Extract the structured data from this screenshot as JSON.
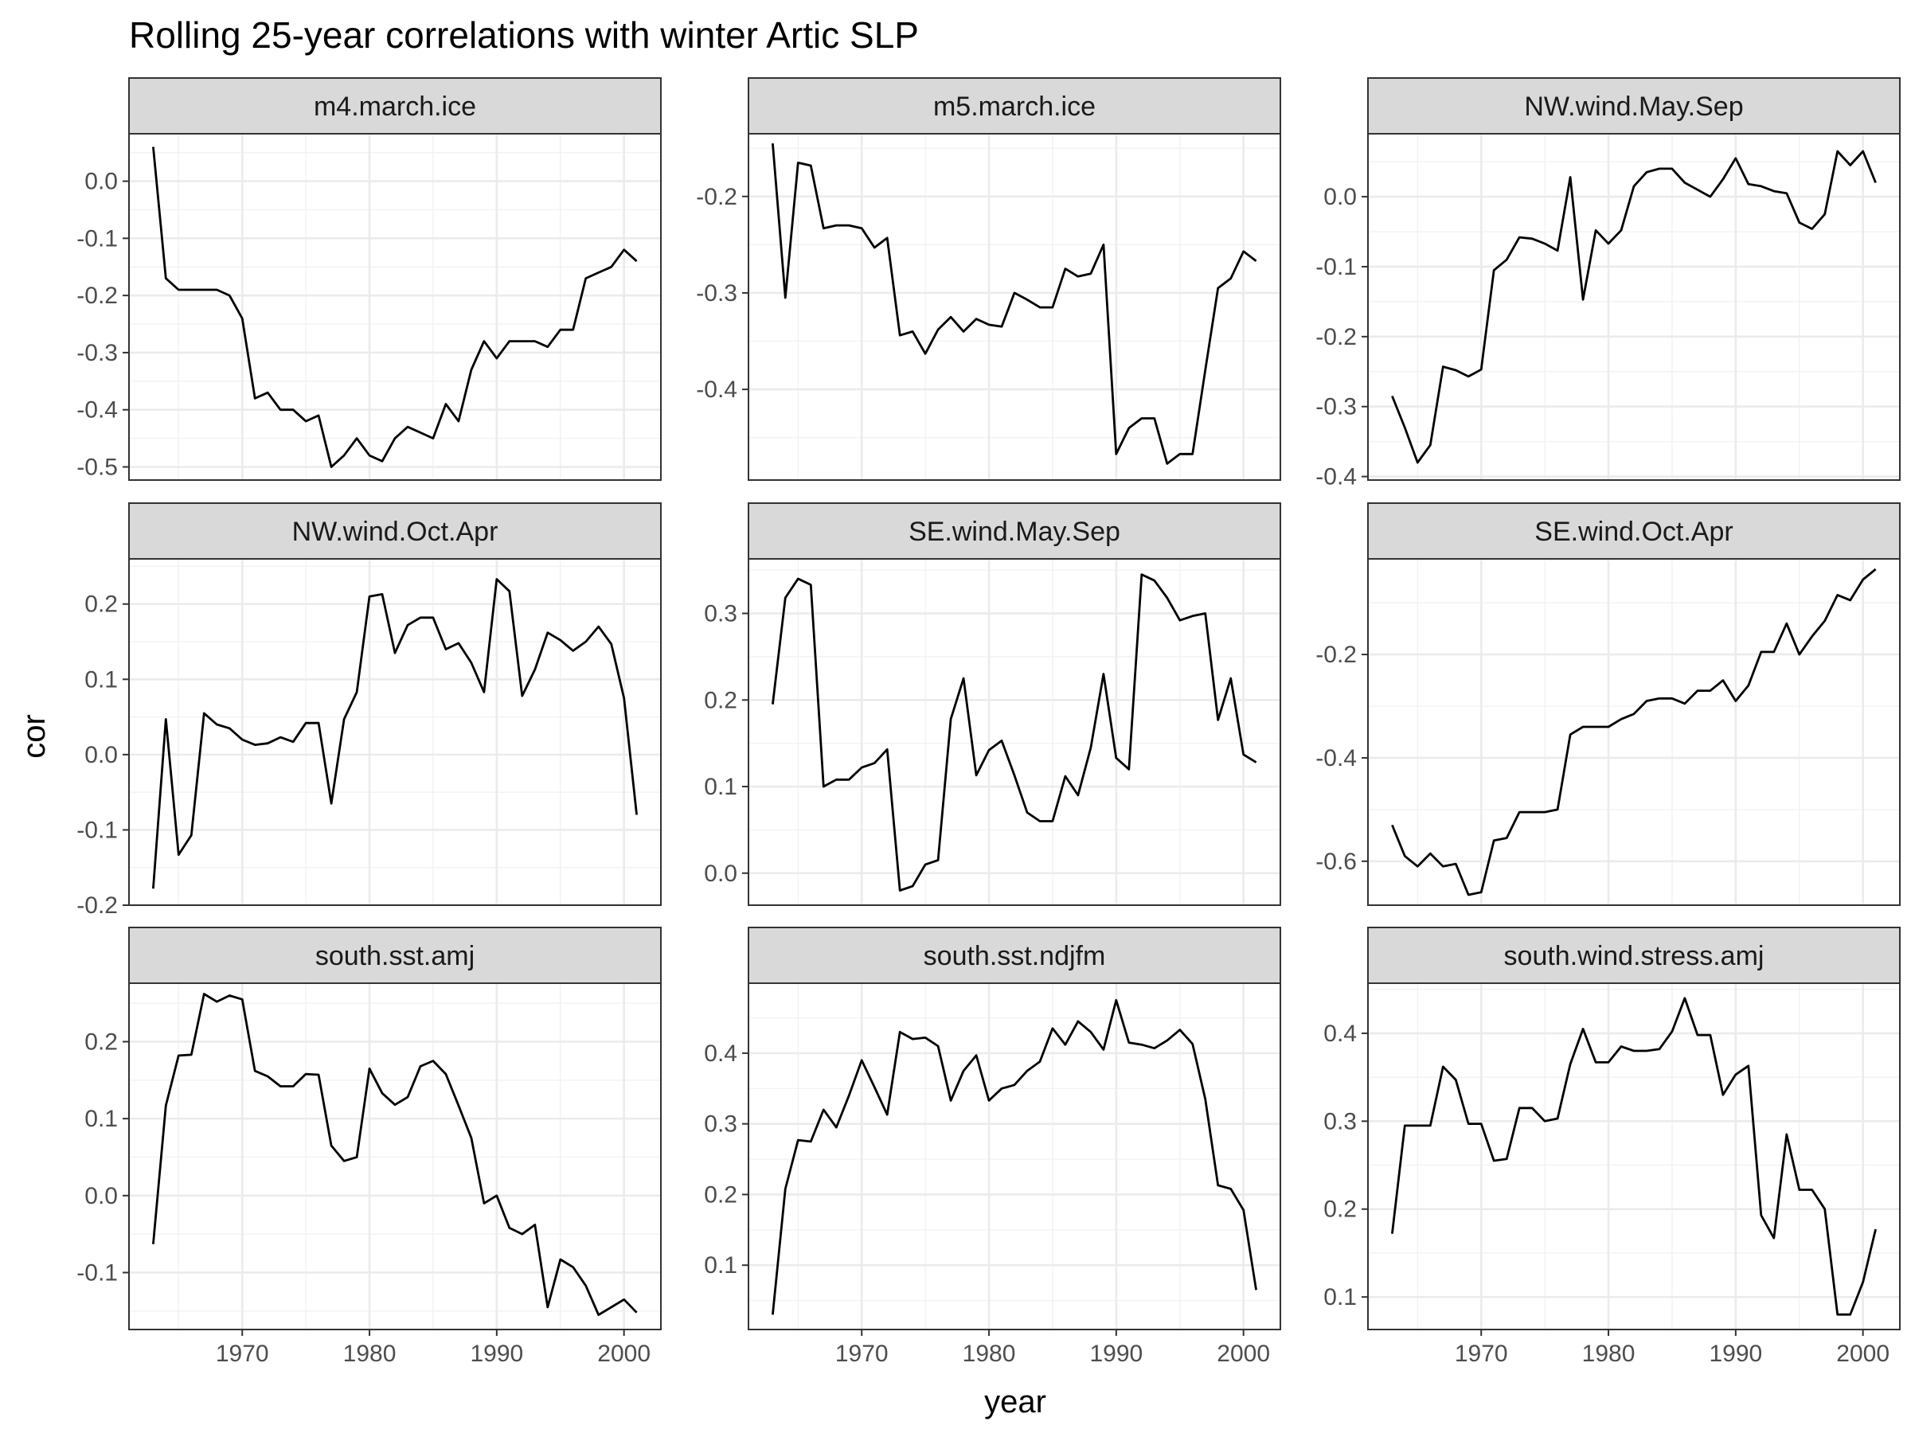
{
  "chart_data": {
    "type": "line",
    "title": "Rolling 25-year correlations with winter Artic SLP",
    "xlabel": "year",
    "ylabel": "cor",
    "x_ticks": [
      1970,
      1980,
      1990,
      2000
    ],
    "xlim": [
      1961.1,
      2002.9
    ],
    "grid": true,
    "layout": "3x3 facet grid",
    "line_color": "#000000",
    "panels": [
      {
        "name": "m4.march.ice",
        "ylim": [
          -0.523,
          0.083
        ],
        "y_ticks": [
          0.0,
          -0.1,
          -0.2,
          -0.3,
          -0.4,
          -0.5
        ],
        "y_tick_labels": [
          "0.0",
          "-0.1",
          "-0.2",
          "-0.3",
          "-0.4",
          "-0.5"
        ],
        "x": [
          1963,
          1964,
          1965,
          1966,
          1967,
          1968,
          1969,
          1970,
          1971,
          1972,
          1973,
          1974,
          1975,
          1976,
          1977,
          1978,
          1979,
          1980,
          1981,
          1982,
          1983,
          1984,
          1985,
          1986,
          1987,
          1988,
          1989,
          1990,
          1991,
          1992,
          1993,
          1994,
          1995,
          1996,
          1997,
          1998,
          1999,
          2000,
          2001
        ],
        "y": [
          0.06,
          -0.17,
          -0.19,
          -0.19,
          -0.19,
          -0.19,
          -0.2,
          -0.24,
          -0.38,
          -0.37,
          -0.4,
          -0.4,
          -0.42,
          -0.41,
          -0.5,
          -0.48,
          -0.45,
          -0.48,
          -0.49,
          -0.45,
          -0.43,
          -0.44,
          -0.45,
          -0.39,
          -0.42,
          -0.33,
          -0.28,
          -0.31,
          -0.28,
          -0.28,
          -0.28,
          -0.29,
          -0.26,
          -0.26,
          -0.17,
          -0.16,
          -0.15,
          -0.12,
          -0.14
        ]
      },
      {
        "name": "m5.march.ice",
        "ylim": [
          -0.494,
          -0.135
        ],
        "y_ticks": [
          -0.2,
          -0.3,
          -0.4
        ],
        "y_tick_labels": [
          "-0.2",
          "-0.3",
          "-0.4"
        ],
        "x": [
          1963,
          1964,
          1965,
          1966,
          1967,
          1968,
          1969,
          1970,
          1971,
          1972,
          1973,
          1974,
          1975,
          1976,
          1977,
          1978,
          1979,
          1980,
          1981,
          1982,
          1983,
          1984,
          1985,
          1986,
          1987,
          1988,
          1989,
          1990,
          1991,
          1992,
          1993,
          1994,
          1995,
          1996,
          1997,
          1998,
          1999,
          2000,
          2001
        ],
        "y": [
          -0.145,
          -0.305,
          -0.165,
          -0.168,
          -0.233,
          -0.23,
          -0.23,
          -0.233,
          -0.253,
          -0.243,
          -0.344,
          -0.34,
          -0.363,
          -0.338,
          -0.325,
          -0.34,
          -0.327,
          -0.333,
          -0.335,
          -0.3,
          -0.307,
          -0.315,
          -0.315,
          -0.275,
          -0.283,
          -0.28,
          -0.25,
          -0.467,
          -0.44,
          -0.43,
          -0.43,
          -0.477,
          -0.467,
          -0.467,
          -0.38,
          -0.295,
          -0.285,
          -0.257,
          -0.267
        ]
      },
      {
        "name": "NW.wind.May.Sep",
        "ylim": [
          -0.405,
          0.09
        ],
        "y_ticks": [
          0.0,
          -0.1,
          -0.2,
          -0.3,
          -0.4
        ],
        "y_tick_labels": [
          "0.0",
          "-0.1",
          "-0.2",
          "-0.3",
          "-0.4"
        ],
        "x": [
          1963,
          1964,
          1965,
          1966,
          1967,
          1968,
          1969,
          1970,
          1971,
          1972,
          1973,
          1974,
          1975,
          1976,
          1977,
          1978,
          1979,
          1980,
          1981,
          1982,
          1983,
          1984,
          1985,
          1986,
          1987,
          1988,
          1989,
          1990,
          1991,
          1992,
          1993,
          1994,
          1995,
          1996,
          1997,
          1998,
          1999,
          2000,
          2001
        ],
        "y": [
          -0.285,
          -0.33,
          -0.38,
          -0.355,
          -0.243,
          -0.248,
          -0.257,
          -0.247,
          -0.105,
          -0.09,
          -0.058,
          -0.06,
          -0.067,
          -0.077,
          0.028,
          -0.147,
          -0.048,
          -0.067,
          -0.048,
          0.015,
          0.035,
          0.04,
          0.04,
          0.02,
          0.01,
          0.0,
          0.025,
          0.055,
          0.018,
          0.015,
          0.008,
          0.005,
          -0.037,
          -0.046,
          -0.025,
          0.065,
          0.045,
          0.065,
          0.02
        ]
      },
      {
        "name": "NW.wind.Oct.Apr",
        "ylim": [
          -0.2,
          0.26
        ],
        "y_ticks": [
          0.2,
          0.1,
          0.0,
          -0.1,
          -0.2
        ],
        "y_tick_labels": [
          "0.2",
          "0.1",
          "0.0",
          "-0.1",
          "-0.2"
        ],
        "x": [
          1963,
          1964,
          1965,
          1966,
          1967,
          1968,
          1969,
          1970,
          1971,
          1972,
          1973,
          1974,
          1975,
          1976,
          1977,
          1978,
          1979,
          1980,
          1981,
          1982,
          1983,
          1984,
          1985,
          1986,
          1987,
          1988,
          1989,
          1990,
          1991,
          1992,
          1993,
          1994,
          1995,
          1996,
          1997,
          1998,
          1999,
          2000,
          2001
        ],
        "y": [
          -0.178,
          0.047,
          -0.133,
          -0.107,
          0.055,
          0.04,
          0.035,
          0.02,
          0.013,
          0.015,
          0.023,
          0.017,
          0.042,
          0.042,
          -0.065,
          0.047,
          0.083,
          0.21,
          0.213,
          0.135,
          0.172,
          0.182,
          0.182,
          0.14,
          0.148,
          0.122,
          0.083,
          0.233,
          0.217,
          0.078,
          0.113,
          0.162,
          0.152,
          0.138,
          0.15,
          0.17,
          0.147,
          0.075,
          -0.08
        ]
      },
      {
        "name": "SE.wind.May.Sep",
        "ylim": [
          -0.037,
          0.363
        ],
        "y_ticks": [
          0.3,
          0.2,
          0.1,
          0.0
        ],
        "y_tick_labels": [
          "0.3",
          "0.2",
          "0.1",
          "0.0"
        ],
        "x": [
          1963,
          1964,
          1965,
          1966,
          1967,
          1968,
          1969,
          1970,
          1971,
          1972,
          1973,
          1974,
          1975,
          1976,
          1977,
          1978,
          1979,
          1980,
          1981,
          1982,
          1983,
          1984,
          1985,
          1986,
          1987,
          1988,
          1989,
          1990,
          1991,
          1992,
          1993,
          1994,
          1995,
          1996,
          1997,
          1998,
          1999,
          2000,
          2001
        ],
        "y": [
          0.195,
          0.318,
          0.34,
          0.333,
          0.1,
          0.108,
          0.108,
          0.122,
          0.127,
          0.143,
          -0.02,
          -0.015,
          0.01,
          0.015,
          0.178,
          0.225,
          0.113,
          0.142,
          0.153,
          0.113,
          0.07,
          0.06,
          0.06,
          0.112,
          0.09,
          0.145,
          0.23,
          0.133,
          0.12,
          0.345,
          0.338,
          0.318,
          0.292,
          0.297,
          0.3,
          0.177,
          0.225,
          0.137,
          0.128
        ]
      },
      {
        "name": "SE.wind.Oct.Apr",
        "ylim": [
          -0.685,
          -0.015
        ],
        "y_ticks": [
          -0.2,
          -0.4,
          -0.6
        ],
        "y_tick_labels": [
          "-0.2",
          "-0.4",
          "-0.6"
        ],
        "x": [
          1963,
          1964,
          1965,
          1966,
          1967,
          1968,
          1969,
          1970,
          1971,
          1972,
          1973,
          1974,
          1975,
          1976,
          1977,
          1978,
          1979,
          1980,
          1981,
          1982,
          1983,
          1984,
          1985,
          1986,
          1987,
          1988,
          1989,
          1990,
          1991,
          1992,
          1993,
          1994,
          1995,
          1996,
          1997,
          1998,
          1999,
          2000,
          2001
        ],
        "y": [
          -0.53,
          -0.59,
          -0.61,
          -0.585,
          -0.61,
          -0.605,
          -0.665,
          -0.66,
          -0.56,
          -0.555,
          -0.505,
          -0.505,
          -0.505,
          -0.5,
          -0.355,
          -0.34,
          -0.34,
          -0.34,
          -0.325,
          -0.315,
          -0.29,
          -0.285,
          -0.285,
          -0.295,
          -0.27,
          -0.27,
          -0.25,
          -0.29,
          -0.26,
          -0.195,
          -0.195,
          -0.14,
          -0.2,
          -0.165,
          -0.135,
          -0.085,
          -0.095,
          -0.055,
          -0.035
        ]
      },
      {
        "name": "south.sst.amj",
        "ylim": [
          -0.174,
          0.276
        ],
        "y_ticks": [
          0.2,
          0.1,
          0.0,
          -0.1
        ],
        "y_tick_labels": [
          "0.2",
          "0.1",
          "0.0",
          "-0.1"
        ],
        "x": [
          1963,
          1964,
          1965,
          1966,
          1967,
          1968,
          1969,
          1970,
          1971,
          1972,
          1973,
          1974,
          1975,
          1976,
          1977,
          1978,
          1979,
          1980,
          1981,
          1982,
          1983,
          1984,
          1985,
          1986,
          1987,
          1988,
          1989,
          1990,
          1991,
          1992,
          1993,
          1994,
          1995,
          1996,
          1997,
          1998,
          1999,
          2000,
          2001
        ],
        "y": [
          -0.063,
          0.117,
          0.182,
          0.183,
          0.262,
          0.252,
          0.26,
          0.255,
          0.162,
          0.155,
          0.142,
          0.142,
          0.158,
          0.157,
          0.065,
          0.045,
          0.05,
          0.165,
          0.133,
          0.118,
          0.128,
          0.168,
          0.175,
          0.158,
          0.117,
          0.075,
          -0.01,
          0.0,
          -0.042,
          -0.05,
          -0.038,
          -0.145,
          -0.083,
          -0.093,
          -0.117,
          -0.155,
          -0.145,
          -0.135,
          -0.152
        ]
      },
      {
        "name": "south.sst.ndjfm",
        "ylim": [
          0.009,
          0.499
        ],
        "y_ticks": [
          0.4,
          0.3,
          0.2,
          0.1
        ],
        "y_tick_labels": [
          "0.4",
          "0.3",
          "0.2",
          "0.1"
        ],
        "x": [
          1963,
          1964,
          1965,
          1966,
          1967,
          1968,
          1969,
          1970,
          1971,
          1972,
          1973,
          1974,
          1975,
          1976,
          1977,
          1978,
          1979,
          1980,
          1981,
          1982,
          1983,
          1984,
          1985,
          1986,
          1987,
          1988,
          1989,
          1990,
          1991,
          1992,
          1993,
          1994,
          1995,
          1996,
          1997,
          1998,
          1999,
          2000,
          2001
        ],
        "y": [
          0.03,
          0.208,
          0.277,
          0.275,
          0.32,
          0.295,
          0.34,
          0.39,
          0.352,
          0.313,
          0.43,
          0.42,
          0.422,
          0.41,
          0.333,
          0.375,
          0.397,
          0.333,
          0.35,
          0.355,
          0.375,
          0.388,
          0.435,
          0.412,
          0.445,
          0.43,
          0.405,
          0.475,
          0.415,
          0.412,
          0.407,
          0.418,
          0.433,
          0.413,
          0.335,
          0.213,
          0.208,
          0.178,
          0.065
        ]
      },
      {
        "name": "south.wind.stress.amj",
        "ylim": [
          0.063,
          0.457
        ],
        "y_ticks": [
          0.4,
          0.3,
          0.2,
          0.1
        ],
        "y_tick_labels": [
          "0.4",
          "0.3",
          "0.2",
          "0.1"
        ],
        "x": [
          1963,
          1964,
          1965,
          1966,
          1967,
          1968,
          1969,
          1970,
          1971,
          1972,
          1973,
          1974,
          1975,
          1976,
          1977,
          1978,
          1979,
          1980,
          1981,
          1982,
          1983,
          1984,
          1985,
          1986,
          1987,
          1988,
          1989,
          1990,
          1991,
          1992,
          1993,
          1994,
          1995,
          1996,
          1997,
          1998,
          1999,
          2000,
          2001
        ],
        "y": [
          0.172,
          0.295,
          0.295,
          0.295,
          0.362,
          0.347,
          0.297,
          0.297,
          0.255,
          0.257,
          0.315,
          0.315,
          0.3,
          0.303,
          0.365,
          0.405,
          0.367,
          0.367,
          0.385,
          0.38,
          0.38,
          0.382,
          0.402,
          0.44,
          0.398,
          0.398,
          0.33,
          0.353,
          0.363,
          0.193,
          0.167,
          0.285,
          0.222,
          0.222,
          0.2,
          0.08,
          0.08,
          0.117,
          0.177
        ]
      }
    ]
  }
}
